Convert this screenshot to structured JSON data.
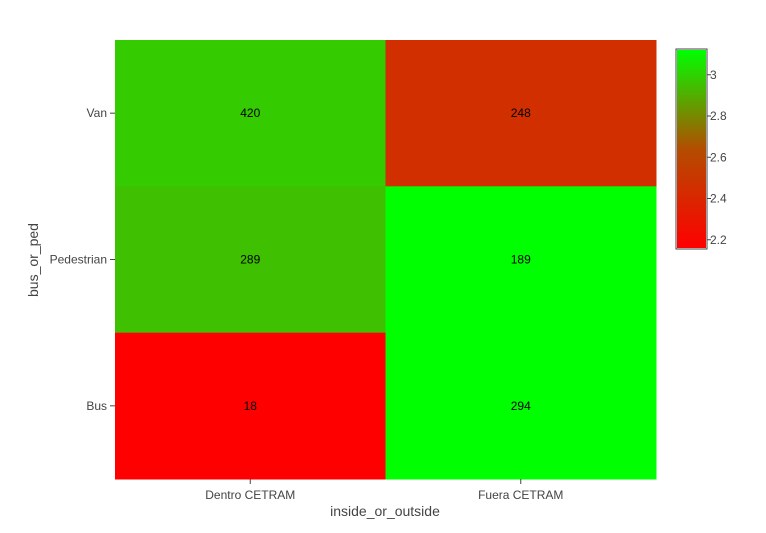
{
  "chart_data": {
    "type": "heatmap",
    "title": "",
    "xlabel": "inside_or_outside",
    "ylabel": "bus_or_ped",
    "x_categories": [
      "Dentro CETRAM",
      "Fuera CETRAM"
    ],
    "y_categories": [
      "Bus",
      "Pedestrian",
      "Van"
    ],
    "cells": [
      {
        "x": "Dentro CETRAM",
        "y": "Van",
        "label": "420",
        "color_value": 2.98
      },
      {
        "x": "Fuera CETRAM",
        "y": "Van",
        "label": "248",
        "color_value": 2.45
      },
      {
        "x": "Dentro CETRAM",
        "y": "Pedestrian",
        "label": "289",
        "color_value": 2.95
      },
      {
        "x": "Fuera CETRAM",
        "y": "Pedestrian",
        "label": "189",
        "color_value": 3.12
      },
      {
        "x": "Dentro CETRAM",
        "y": "Bus",
        "label": "18",
        "color_value": 2.16
      },
      {
        "x": "Fuera CETRAM",
        "y": "Bus",
        "label": "294",
        "color_value": 3.12
      }
    ],
    "colorscale": {
      "min": 2.16,
      "max": 3.12,
      "stops": [
        "#ff0000",
        "#b34d00",
        "#00ff00"
      ],
      "ticks": [
        2.2,
        2.4,
        2.6,
        2.8,
        3
      ]
    },
    "grid": false,
    "legend": "colorbar right"
  }
}
